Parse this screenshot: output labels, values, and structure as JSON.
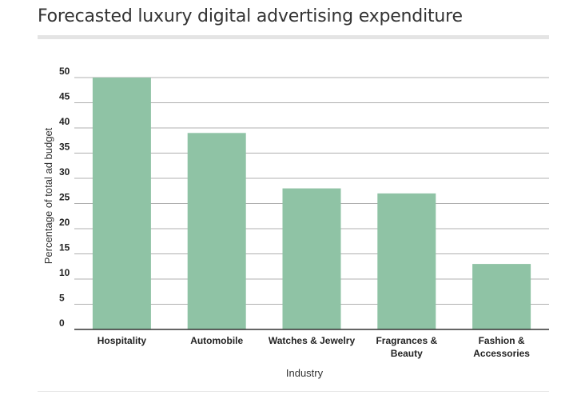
{
  "chart_data": {
    "type": "bar",
    "title": "Forecasted luxury digital advertising expenditure",
    "xlabel": "Industry",
    "ylabel": "Percentage of total ad budget",
    "categories": [
      [
        "Hospitality"
      ],
      [
        "Automobile"
      ],
      [
        "Watches & Jewelry"
      ],
      [
        "Fragrances &",
        "Beauty"
      ],
      [
        "Fashion &",
        "Accessories"
      ]
    ],
    "values": [
      50,
      39,
      28,
      27,
      13
    ],
    "ylim": [
      0,
      50
    ],
    "yticks": [
      0,
      5,
      10,
      15,
      20,
      25,
      30,
      35,
      40,
      45,
      50
    ],
    "grid": true,
    "legend": "none",
    "colors": {
      "bar": "#8fc3a5",
      "grid": "#b0b0b0",
      "axis": "#333333"
    }
  }
}
